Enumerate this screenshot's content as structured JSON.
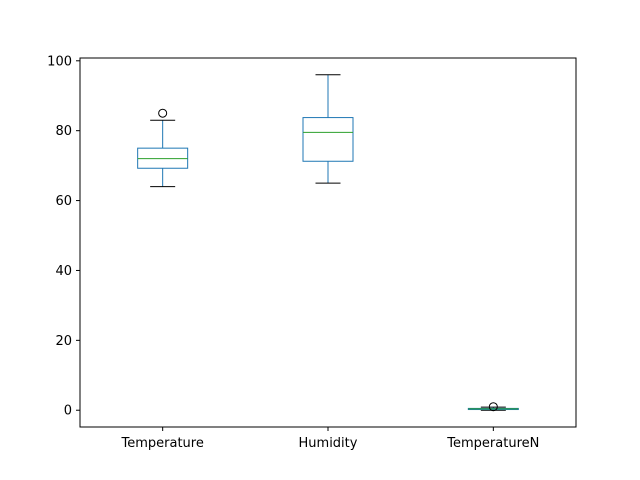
{
  "chart_data": {
    "type": "box",
    "categories": [
      "Temperature",
      "Humidity",
      "TemperatureN"
    ],
    "boxes": [
      {
        "name": "Temperature",
        "whisker_low": 64,
        "q1": 69.25,
        "median": 72,
        "q3": 75,
        "whisker_high": 83,
        "outliers": [
          85
        ]
      },
      {
        "name": "Humidity",
        "whisker_low": 65,
        "q1": 71.25,
        "median": 79.5,
        "q3": 83.75,
        "whisker_high": 96,
        "outliers": []
      },
      {
        "name": "TemperatureN",
        "whisker_low": 0,
        "q1": 0.2,
        "median": 0.38,
        "q3": 0.52,
        "whisker_high": 0.9,
        "outliers": [
          1.0
        ]
      }
    ],
    "ylim": [
      -4.8,
      100.8
    ],
    "yticks": [
      0,
      20,
      40,
      60,
      80,
      100
    ],
    "grid": false,
    "colors": {
      "box": "#1f77b4",
      "median": "#2ca02c",
      "whisker_cap": "#000000",
      "outlier": "#000000"
    }
  }
}
